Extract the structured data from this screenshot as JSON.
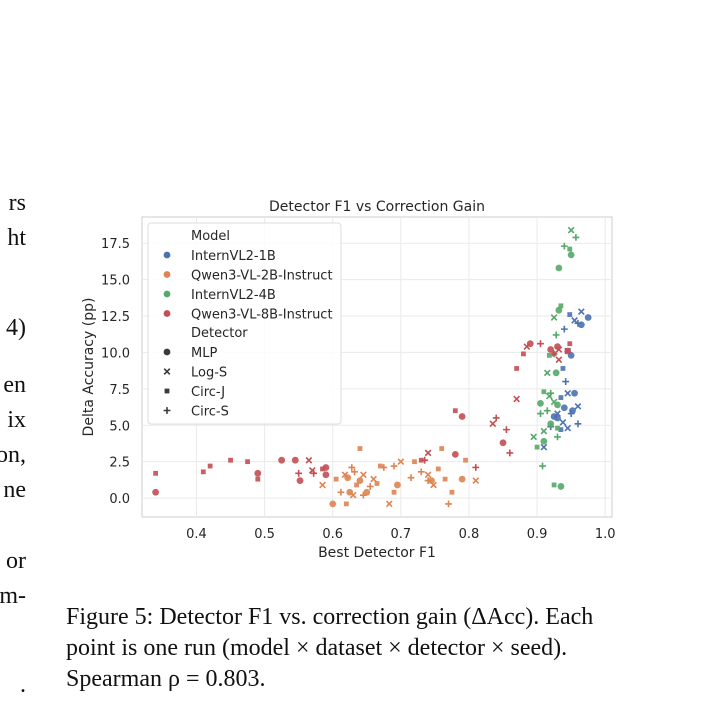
{
  "left_column_fragments": [
    "rs",
    "ht",
    "4)",
    "en",
    "ix",
    "on,",
    "ne",
    "or",
    "m-",
    "."
  ],
  "caption": {
    "line1": "Figure 5: Detector F1 vs. correction gain (ΔAcc). Each",
    "line2": "point is one run (model × dataset × detector × seed).",
    "line3": "Spearman ρ = 0.803."
  },
  "chart_data": {
    "type": "scatter",
    "title": "Detector F1 vs Correction Gain",
    "xlabel": "Best Detector F1",
    "ylabel": "Delta Accuracy (pp)",
    "xlim": [
      0.32,
      1.01
    ],
    "ylim": [
      -1.3,
      19.3
    ],
    "xticks": [
      0.4,
      0.5,
      0.6,
      0.7,
      0.8,
      0.9,
      1.0
    ],
    "xtick_labels": [
      "0.4",
      "0.5",
      "0.6",
      "0.7",
      "0.8",
      "0.9",
      "1.0"
    ],
    "yticks": [
      0.0,
      2.5,
      5.0,
      7.5,
      10.0,
      12.5,
      15.0,
      17.5
    ],
    "ytick_labels": [
      "0.0",
      "2.5",
      "5.0",
      "7.5",
      "10.0",
      "12.5",
      "15.0",
      "17.5"
    ],
    "grid": true,
    "legend_placement": "top-left",
    "legend": {
      "model_title": "Model",
      "detector_title": "Detector",
      "models": [
        {
          "name": "InternVL2-1B",
          "color": "#4C72B0"
        },
        {
          "name": "Qwen3-VL-2B-Instruct",
          "color": "#DD8452"
        },
        {
          "name": "InternVL2-4B",
          "color": "#55A868"
        },
        {
          "name": "Qwen3-VL-8B-Instruct",
          "color": "#C44E52"
        }
      ],
      "detectors": [
        {
          "name": "MLP",
          "marker": "circle"
        },
        {
          "name": "Log-S",
          "marker": "x"
        },
        {
          "name": "Circ-J",
          "marker": "square"
        },
        {
          "name": "Circ-S",
          "marker": "plus"
        }
      ]
    },
    "series": [
      {
        "model": "InternVL2-1B",
        "points": [
          [
            0.975,
            12.4,
            "MLP"
          ],
          [
            0.955,
            12.2,
            "Log-S"
          ],
          [
            0.965,
            12.8,
            "Log-S"
          ],
          [
            0.96,
            12.0,
            "Circ-S"
          ],
          [
            0.948,
            12.6,
            "Circ-J"
          ],
          [
            0.94,
            11.6,
            "Circ-S"
          ],
          [
            0.965,
            11.9,
            "MLP"
          ],
          [
            0.945,
            10.1,
            "Log-S"
          ],
          [
            0.95,
            9.8,
            "MLP"
          ],
          [
            0.942,
            8.0,
            "Circ-S"
          ],
          [
            0.938,
            8.9,
            "Circ-J"
          ],
          [
            0.955,
            7.2,
            "MLP"
          ],
          [
            0.945,
            7.2,
            "Log-S"
          ],
          [
            0.96,
            6.3,
            "Log-S"
          ],
          [
            0.94,
            6.2,
            "MLP"
          ],
          [
            0.935,
            6.9,
            "Circ-J"
          ],
          [
            0.95,
            5.8,
            "Circ-S"
          ],
          [
            0.952,
            6.0,
            "MLP"
          ],
          [
            0.93,
            5.8,
            "Log-S"
          ],
          [
            0.96,
            5.1,
            "Circ-S"
          ],
          [
            0.945,
            4.8,
            "Log-S"
          ],
          [
            0.93,
            5.5,
            "MLP"
          ],
          [
            0.935,
            4.7,
            "Circ-J"
          ],
          [
            0.92,
            4.9,
            "Circ-S"
          ],
          [
            0.925,
            5.6,
            "MLP"
          ],
          [
            0.91,
            3.5,
            "Log-S"
          ],
          [
            0.938,
            5.2,
            "Log-S"
          ]
        ]
      },
      {
        "model": "Qwen3-VL-2B-Instruct",
        "points": [
          [
            0.6,
            -0.4,
            "MLP"
          ],
          [
            0.612,
            0.4,
            "Circ-S"
          ],
          [
            0.622,
            1.4,
            "MLP"
          ],
          [
            0.63,
            0.2,
            "Log-S"
          ],
          [
            0.635,
            0.9,
            "Circ-J"
          ],
          [
            0.64,
            1.2,
            "MLP"
          ],
          [
            0.645,
            1.6,
            "Log-S"
          ],
          [
            0.65,
            0.4,
            "MLP"
          ],
          [
            0.655,
            0.8,
            "Circ-S"
          ],
          [
            0.66,
            1.3,
            "Log-S"
          ],
          [
            0.665,
            1.0,
            "Circ-J"
          ],
          [
            0.625,
            0.4,
            "MLP"
          ],
          [
            0.62,
            -0.4,
            "Circ-J"
          ],
          [
            0.605,
            1.3,
            "Circ-J"
          ],
          [
            0.618,
            1.6,
            "Log-S"
          ],
          [
            0.632,
            1.8,
            "Circ-S"
          ],
          [
            0.628,
            2.1,
            "Circ-S"
          ],
          [
            0.64,
            3.4,
            "Circ-J"
          ],
          [
            0.67,
            2.2,
            "Circ-J"
          ],
          [
            0.675,
            2.1,
            "Circ-S"
          ],
          [
            0.69,
            2.2,
            "Circ-S"
          ],
          [
            0.7,
            2.5,
            "Log-S"
          ],
          [
            0.695,
            0.9,
            "MLP"
          ],
          [
            0.72,
            2.5,
            "Circ-J"
          ],
          [
            0.73,
            1.8,
            "Circ-S"
          ],
          [
            0.74,
            1.6,
            "Log-S"
          ],
          [
            0.745,
            1.2,
            "MLP"
          ],
          [
            0.748,
            0.9,
            "Log-S"
          ],
          [
            0.755,
            2.0,
            "Circ-J"
          ],
          [
            0.765,
            1.3,
            "Circ-J"
          ],
          [
            0.77,
            -0.4,
            "Circ-S"
          ],
          [
            0.775,
            0.4,
            "Circ-J"
          ],
          [
            0.79,
            1.3,
            "MLP"
          ],
          [
            0.795,
            2.6,
            "Circ-J"
          ],
          [
            0.81,
            1.2,
            "Log-S"
          ],
          [
            0.683,
            -0.4,
            "Log-S"
          ],
          [
            0.645,
            0.2,
            "Circ-S"
          ],
          [
            0.74,
            1.2,
            "Circ-S"
          ],
          [
            0.76,
            3.4,
            "Circ-J"
          ],
          [
            0.715,
            1.4,
            "Circ-S"
          ],
          [
            0.585,
            0.9,
            "Log-S"
          ],
          [
            0.69,
            0.4,
            "Circ-J"
          ]
        ]
      },
      {
        "model": "InternVL2-4B",
        "points": [
          [
            0.95,
            18.4,
            "Log-S"
          ],
          [
            0.957,
            17.9,
            "Circ-S"
          ],
          [
            0.94,
            17.3,
            "Circ-S"
          ],
          [
            0.948,
            17.1,
            "Circ-J"
          ],
          [
            0.932,
            15.8,
            "MLP"
          ],
          [
            0.95,
            16.7,
            "MLP"
          ],
          [
            0.935,
            13.2,
            "Circ-J"
          ],
          [
            0.932,
            12.9,
            "MLP"
          ],
          [
            0.925,
            12.4,
            "Log-S"
          ],
          [
            0.928,
            11.2,
            "Circ-S"
          ],
          [
            0.925,
            9.9,
            "Circ-S"
          ],
          [
            0.918,
            9.8,
            "Circ-J"
          ],
          [
            0.928,
            8.6,
            "MLP"
          ],
          [
            0.915,
            8.6,
            "Log-S"
          ],
          [
            0.91,
            7.3,
            "Circ-J"
          ],
          [
            0.92,
            7.2,
            "Circ-S"
          ],
          [
            0.925,
            6.6,
            "Log-S"
          ],
          [
            0.93,
            6.4,
            "MLP"
          ],
          [
            0.915,
            6.0,
            "Circ-S"
          ],
          [
            0.905,
            5.8,
            "Circ-S"
          ],
          [
            0.92,
            5.1,
            "MLP"
          ],
          [
            0.93,
            4.8,
            "Circ-J"
          ],
          [
            0.91,
            4.6,
            "Log-S"
          ],
          [
            0.895,
            4.2,
            "Log-S"
          ],
          [
            0.93,
            4.2,
            "Circ-S"
          ],
          [
            0.91,
            3.9,
            "MLP"
          ],
          [
            0.9,
            3.5,
            "Circ-J"
          ],
          [
            0.908,
            2.2,
            "Circ-S"
          ],
          [
            0.925,
            0.9,
            "Circ-J"
          ],
          [
            0.935,
            0.8,
            "MLP"
          ],
          [
            0.905,
            6.5,
            "MLP"
          ],
          [
            0.918,
            7.0,
            "Log-S"
          ]
        ]
      },
      {
        "model": "Qwen3-VL-8B-Instruct",
        "points": [
          [
            0.34,
            0.4,
            "MLP"
          ],
          [
            0.34,
            1.7,
            "Circ-J"
          ],
          [
            0.41,
            1.8,
            "Circ-J"
          ],
          [
            0.42,
            2.2,
            "Circ-J"
          ],
          [
            0.45,
            2.6,
            "Circ-J"
          ],
          [
            0.475,
            2.5,
            "Circ-J"
          ],
          [
            0.49,
            1.7,
            "MLP"
          ],
          [
            0.49,
            1.3,
            "Circ-J"
          ],
          [
            0.525,
            2.6,
            "MLP"
          ],
          [
            0.545,
            2.6,
            "MLP"
          ],
          [
            0.55,
            1.7,
            "Circ-S"
          ],
          [
            0.552,
            1.2,
            "MLP"
          ],
          [
            0.565,
            2.6,
            "Log-S"
          ],
          [
            0.57,
            1.9,
            "Log-S"
          ],
          [
            0.572,
            1.7,
            "Circ-S"
          ],
          [
            0.585,
            2.0,
            "Circ-J"
          ],
          [
            0.59,
            2.1,
            "MLP"
          ],
          [
            0.59,
            1.6,
            "MLP"
          ],
          [
            0.73,
            2.6,
            "Circ-J"
          ],
          [
            0.74,
            3.1,
            "Log-S"
          ],
          [
            0.735,
            2.6,
            "Circ-S"
          ],
          [
            0.78,
            3.0,
            "MLP"
          ],
          [
            0.78,
            6.0,
            "Circ-J"
          ],
          [
            0.79,
            5.6,
            "MLP"
          ],
          [
            0.81,
            2.1,
            "Circ-S"
          ],
          [
            0.835,
            5.1,
            "Log-S"
          ],
          [
            0.84,
            5.5,
            "Circ-S"
          ],
          [
            0.85,
            3.8,
            "MLP"
          ],
          [
            0.855,
            4.7,
            "Circ-S"
          ],
          [
            0.86,
            3.1,
            "Circ-S"
          ],
          [
            0.87,
            6.8,
            "Log-S"
          ],
          [
            0.87,
            8.9,
            "Circ-J"
          ],
          [
            0.88,
            9.9,
            "Circ-J"
          ],
          [
            0.885,
            10.4,
            "Log-S"
          ],
          [
            0.89,
            10.6,
            "MLP"
          ],
          [
            0.905,
            10.6,
            "Circ-S"
          ],
          [
            0.92,
            10.2,
            "MLP"
          ],
          [
            0.925,
            9.9,
            "Circ-J"
          ],
          [
            0.932,
            10.2,
            "Log-S"
          ],
          [
            0.945,
            10.1,
            "MLP"
          ],
          [
            0.93,
            10.4,
            "MLP"
          ],
          [
            0.948,
            10.6,
            "Circ-J"
          ],
          [
            0.932,
            9.5,
            "Log-S"
          ]
        ]
      }
    ]
  }
}
